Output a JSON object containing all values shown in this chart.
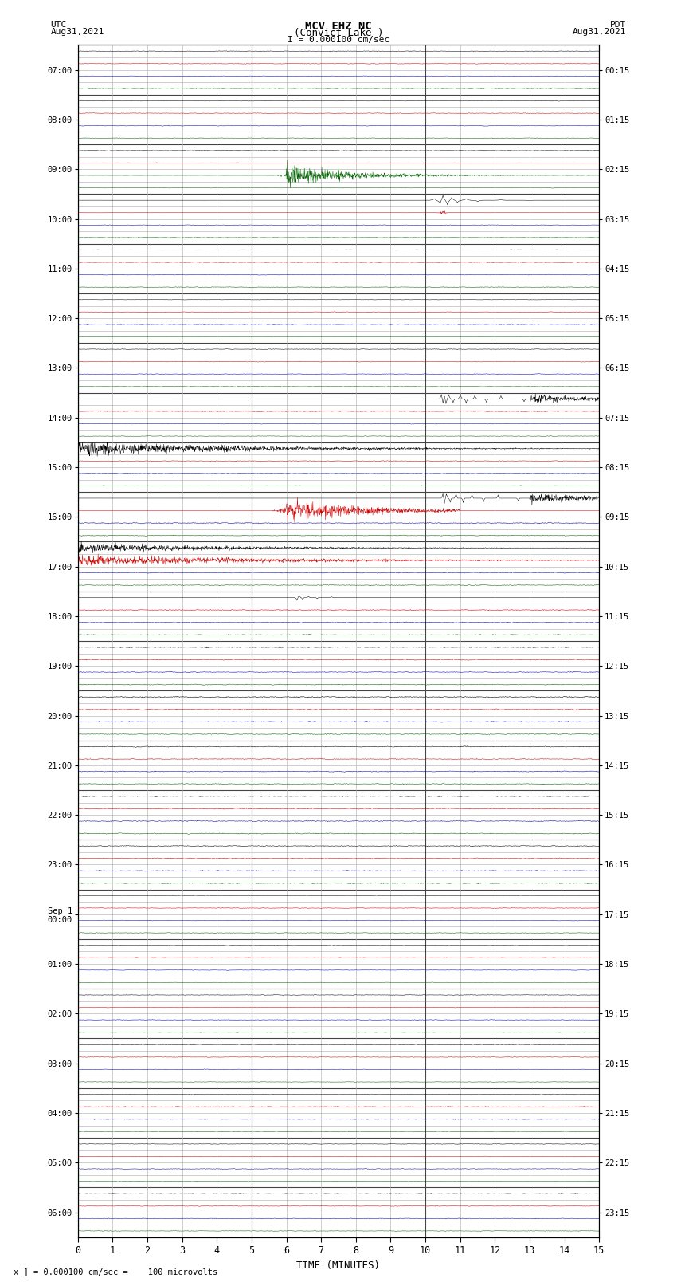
{
  "title_line1": "MCV EHZ NC",
  "title_line2": "(Convict Lake )",
  "title_line3": "I = 0.000100 cm/sec",
  "left_header_line1": "UTC",
  "left_header_line2": "Aug31,2021",
  "right_header_line1": "PDT",
  "right_header_line2": "Aug31,2021",
  "footer_text": "x ] = 0.000100 cm/sec =    100 microvolts",
  "xlabel": "TIME (MINUTES)",
  "xticks": [
    0,
    1,
    2,
    3,
    4,
    5,
    6,
    7,
    8,
    9,
    10,
    11,
    12,
    13,
    14,
    15
  ],
  "time_minutes": 15,
  "num_hour_rows": 24,
  "subrows_per_hour": 4,
  "left_labels": [
    "07:00",
    "08:00",
    "09:00",
    "10:00",
    "11:00",
    "12:00",
    "13:00",
    "14:00",
    "15:00",
    "16:00",
    "17:00",
    "18:00",
    "19:00",
    "20:00",
    "21:00",
    "22:00",
    "23:00",
    "Sep 1\n00:00",
    "01:00",
    "02:00",
    "03:00",
    "04:00",
    "05:00",
    "06:00"
  ],
  "right_labels": [
    "00:15",
    "01:15",
    "02:15",
    "03:15",
    "04:15",
    "05:15",
    "06:15",
    "07:15",
    "08:15",
    "09:15",
    "10:15",
    "11:15",
    "12:15",
    "13:15",
    "14:15",
    "15:15",
    "16:15",
    "17:15",
    "18:15",
    "19:15",
    "20:15",
    "21:15",
    "22:15",
    "23:15"
  ],
  "background_color": "#ffffff",
  "grid_major_color": "#444444",
  "grid_minor_color": "#aaaaaa",
  "subrow_colors": [
    "#000000",
    "#cc0000",
    "#0000aa",
    "#006400"
  ],
  "seed": 42
}
